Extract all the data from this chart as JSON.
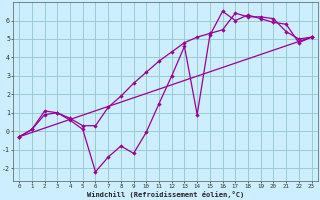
{
  "title": "",
  "xlabel": "Windchill (Refroidissement éolien,°C)",
  "bg_color": "#cceeff",
  "grid_color": "#99cccc",
  "line_color": "#990099",
  "xlim": [
    -0.5,
    23.5
  ],
  "ylim": [
    -2.7,
    7.0
  ],
  "yticks": [
    -2,
    -1,
    0,
    1,
    2,
    3,
    4,
    5,
    6
  ],
  "xticks": [
    0,
    1,
    2,
    3,
    4,
    5,
    6,
    7,
    8,
    9,
    10,
    11,
    12,
    13,
    14,
    15,
    16,
    17,
    18,
    19,
    20,
    21,
    22,
    23
  ],
  "line1_x": [
    0,
    1,
    2,
    3,
    4,
    5,
    6,
    7,
    8,
    9,
    10,
    11,
    12,
    13,
    14,
    15,
    16,
    17,
    18,
    19,
    20,
    21,
    22,
    23
  ],
  "line1_y": [
    -0.3,
    0.1,
    0.9,
    1.0,
    0.6,
    0.1,
    -2.2,
    -1.4,
    -0.8,
    -1.2,
    -0.05,
    1.5,
    3.0,
    4.6,
    0.9,
    5.2,
    6.5,
    6.0,
    6.3,
    6.1,
    5.9,
    5.8,
    4.8,
    5.1
  ],
  "line2_x": [
    0,
    1,
    2,
    3,
    4,
    5,
    6,
    7,
    8,
    9,
    10,
    11,
    12,
    13,
    14,
    15,
    16,
    17,
    18,
    19,
    20,
    21,
    22,
    23
  ],
  "line2_y": [
    -0.3,
    0.1,
    1.1,
    1.0,
    0.7,
    0.3,
    0.3,
    1.3,
    1.9,
    2.6,
    3.2,
    3.8,
    4.3,
    4.8,
    5.1,
    5.3,
    5.5,
    6.4,
    6.2,
    6.2,
    6.1,
    5.4,
    5.0,
    5.1
  ],
  "line3_x": [
    0,
    23
  ],
  "line3_y": [
    -0.3,
    5.1
  ]
}
